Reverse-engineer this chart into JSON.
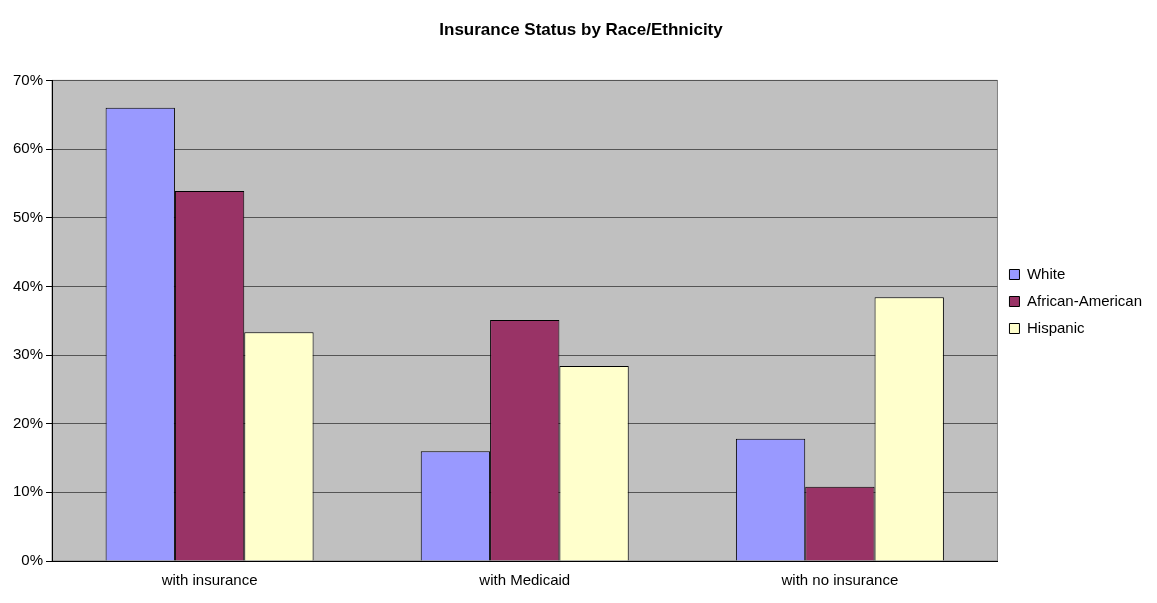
{
  "chart_data": {
    "type": "bar",
    "title": "Insurance Status by Race/Ethnicity",
    "categories": [
      "with insurance",
      "with Medicaid",
      "with no insurance"
    ],
    "series": [
      {
        "name": "White",
        "color": "#9999ff",
        "values": [
          66,
          16,
          17.8
        ]
      },
      {
        "name": "African-American",
        "color": "#993366",
        "values": [
          53.9,
          35.1,
          10.8
        ]
      },
      {
        "name": "Hispanic",
        "color": "#ffffcc",
        "values": [
          33.3,
          28.4,
          38.4
        ]
      }
    ],
    "ylim": [
      0,
      70
    ],
    "yticks": [
      {
        "value": 0,
        "label": "0%"
      },
      {
        "value": 10,
        "label": "10%"
      },
      {
        "value": 20,
        "label": "20%"
      },
      {
        "value": 30,
        "label": "30%"
      },
      {
        "value": 40,
        "label": "40%"
      },
      {
        "value": 50,
        "label": "50%"
      },
      {
        "value": 60,
        "label": "60%"
      },
      {
        "value": 70,
        "label": "70%"
      }
    ],
    "grid": "y",
    "legend": "right"
  }
}
